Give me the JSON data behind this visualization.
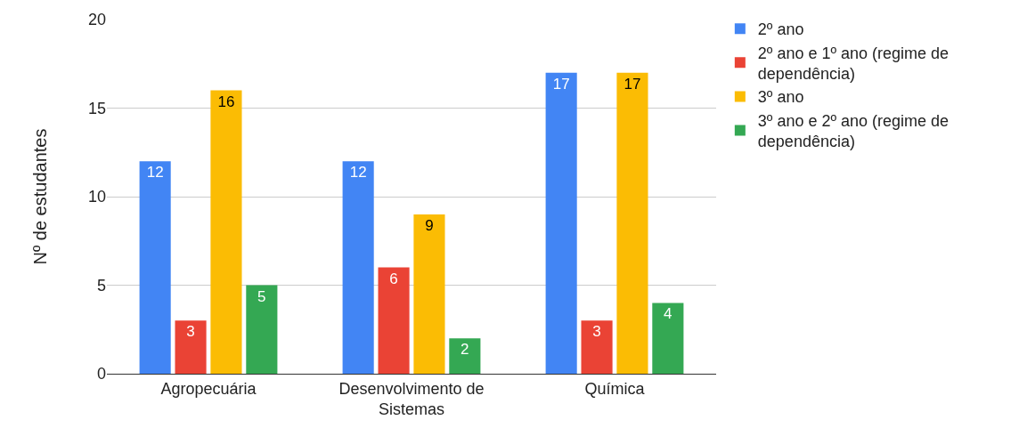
{
  "chart_data": {
    "type": "bar",
    "ylabel": "Nº de estudantes",
    "categories": [
      "Agropecuária",
      "Desenvolvimento de Sistemas",
      "Química"
    ],
    "series": [
      {
        "name": "2º ano",
        "color": "#4285f4",
        "values": [
          12,
          12,
          17
        ]
      },
      {
        "name": "2º ano e 1º ano (regime de dependência)",
        "color": "#ea4335",
        "values": [
          3,
          6,
          3
        ]
      },
      {
        "name": "3º ano",
        "color": "#fbbc04",
        "values": [
          16,
          9,
          17
        ]
      },
      {
        "name": "3º ano e 2º ano (regime de dependência)",
        "color": "#34a853",
        "values": [
          5,
          2,
          4
        ]
      }
    ],
    "ylim": [
      0,
      20
    ],
    "yticks": [
      0,
      5,
      10,
      15,
      20
    ],
    "grid": "y",
    "legend": "right",
    "data_labels": true
  }
}
